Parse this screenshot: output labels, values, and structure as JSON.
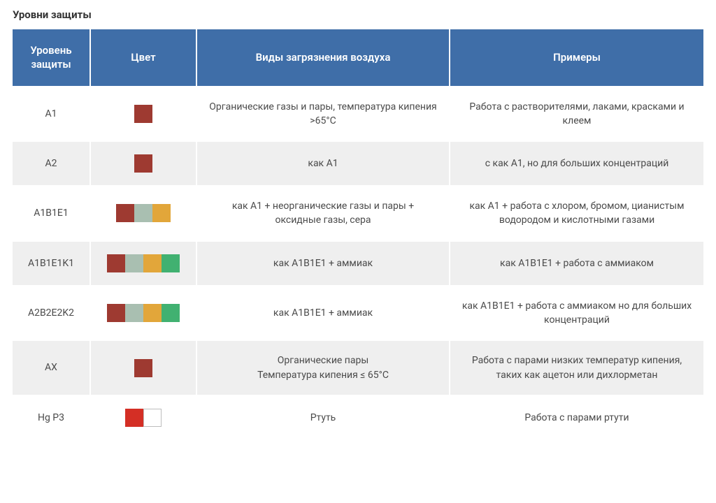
{
  "title": "Уровни защиты",
  "headers": {
    "level": "Уровень защиты",
    "color": "Цвет",
    "pollution": "Виды загрязнения воздуха",
    "examples": "Примеры"
  },
  "palette": {
    "brown": "#9e3a31",
    "sage": "#a9bfb1",
    "amber": "#e2a63a",
    "green": "#41b171",
    "red": "#d42f25",
    "white_bordered": "#ffffff",
    "header_bg": "#3f6ea8",
    "row_alt_bg": "#efefef"
  },
  "rows": [
    {
      "level": "A1",
      "alt": false,
      "swatches": [
        "brown"
      ],
      "pollution": "Органические газы и пары, температура кипения >65°C",
      "examples": "Работа с растворителями, лаками, красками и клеем"
    },
    {
      "level": "A2",
      "alt": true,
      "swatches": [
        "brown"
      ],
      "pollution": "как A1",
      "examples": "с как A1, но для больших концентраций"
    },
    {
      "level": "A1B1E1",
      "alt": false,
      "swatches": [
        "brown",
        "sage",
        "amber"
      ],
      "pollution": "как A1 + неорганические газы и пары + оксидные газы, сера",
      "examples": "как A1 + работа с хлором, бромом, цианистым водородом и  кислотными газами"
    },
    {
      "level": "A1B1E1K1",
      "alt": true,
      "swatches": [
        "brown",
        "sage",
        "amber",
        "green"
      ],
      "pollution": "как A1B1E1 + аммиак",
      "examples": "как A1B1E1 + работа с аммиаком"
    },
    {
      "level": "A2B2E2K2",
      "alt": false,
      "swatches": [
        "brown",
        "sage",
        "amber",
        "green"
      ],
      "pollution": "как A1B1E1 + аммиак",
      "examples": "как A1B1E1 + работа с аммиаком но для больших концентраций"
    },
    {
      "level": "AX",
      "alt": true,
      "swatches": [
        "brown"
      ],
      "pollution": "Органические пары\nТемпература кипения ≤ 65°C",
      "examples": "Работа с парами низких температур кипения, таких как ацетон или дихлорметан"
    },
    {
      "level": "Hg P3",
      "alt": false,
      "swatches": [
        "red",
        "white_bordered"
      ],
      "pollution": "Ртуть",
      "examples": "Работа с парами ртути"
    }
  ]
}
